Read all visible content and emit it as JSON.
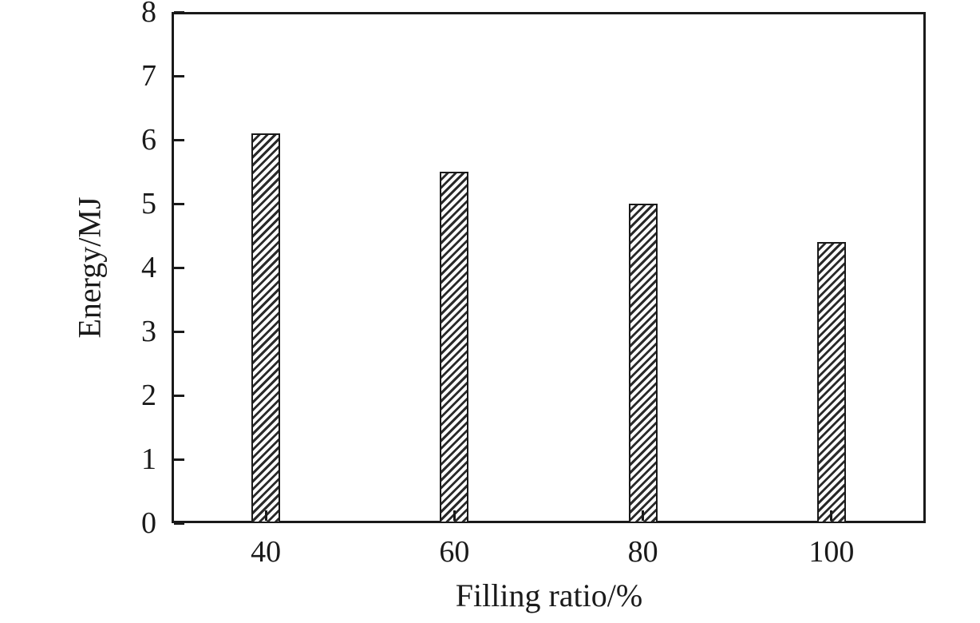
{
  "chart_data": {
    "type": "bar",
    "categories": [
      "40",
      "60",
      "80",
      "100"
    ],
    "values": [
      6.1,
      5.5,
      5.0,
      4.4
    ],
    "title": "",
    "xlabel": "Filling ratio/%",
    "ylabel": "Energy/MJ",
    "ylim": [
      0,
      8
    ],
    "ytick_step": 1,
    "grid": false,
    "legend": "none",
    "bar_style": "diagonal-hatch",
    "colors": {
      "axis": "#1a1a1a",
      "hatch": "#2a2a2a",
      "background": "#ffffff"
    }
  }
}
